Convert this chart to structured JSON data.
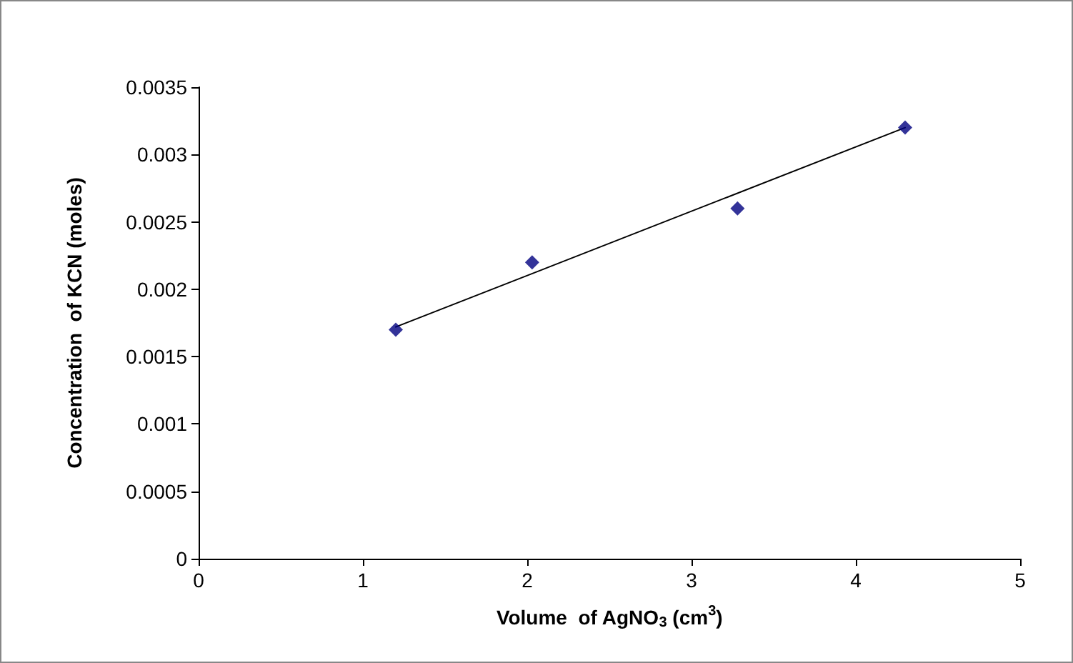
{
  "chart_data": {
    "type": "scatter",
    "xlabel": "Volume  of AgNO$_{3}$ (cm$^{3}$)",
    "ylabel": "Concentration  of KCN (moles)",
    "series": [
      {
        "color": "#000080",
        "x": [
          1.2,
          2.03,
          3.28,
          4.3
        ],
        "values": [
          0.0017,
          0.0022,
          0.0026,
          0.0032
        ],
        "marker": "diamond"
      },
      {
        "type": "line",
        "color": "#000000",
        "x": [
          1.2,
          4.3
        ],
        "values": [
          0.00172,
          0.0032
        ],
        "marker": "none",
        "line_style": "solid"
      }
    ],
    "xlim": [
      0,
      5
    ],
    "xticks": [
      0,
      1,
      2,
      3,
      4,
      5
    ],
    "ylim": [
      0,
      0.0035
    ],
    "yticks": [
      0,
      0.0005,
      0.001,
      0.0015,
      0.002,
      0.0025,
      0.003,
      0.0035
    ],
    "grid": false
  }
}
